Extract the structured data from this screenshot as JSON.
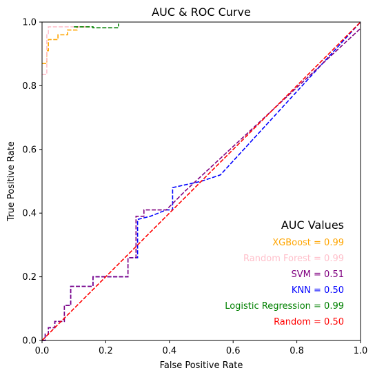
{
  "chart_data": {
    "type": "line",
    "title": "AUC & ROC Curve",
    "xlabel": "False Positive Rate",
    "ylabel": "True Positive Rate",
    "xlim": [
      0,
      1
    ],
    "ylim": [
      0,
      1
    ],
    "grid": false,
    "line_style": "dashed",
    "xticks": [
      "0.0",
      "0.2",
      "0.4",
      "0.6",
      "0.8",
      "1.0"
    ],
    "yticks": [
      "0.0",
      "0.2",
      "0.4",
      "0.6",
      "0.8",
      "1.0"
    ],
    "series": [
      {
        "key": "knn",
        "color": "#0000ff",
        "x": [
          0,
          0.01,
          0.01,
          0.02,
          0.02,
          0.04,
          0.04,
          0.07,
          0.07,
          0.09,
          0.09,
          0.16,
          0.16,
          0.27,
          0.27,
          0.3,
          0.3,
          0.34,
          0.39,
          0.41,
          0.41,
          0.5,
          0.56,
          1.0
        ],
        "y": [
          0,
          0,
          0.02,
          0.02,
          0.04,
          0.04,
          0.06,
          0.06,
          0.11,
          0.11,
          0.17,
          0.17,
          0.2,
          0.2,
          0.26,
          0.26,
          0.38,
          0.39,
          0.41,
          0.41,
          0.48,
          0.5,
          0.52,
          1.0
        ]
      },
      {
        "key": "svm",
        "color": "#800080",
        "x": [
          0,
          0.01,
          0.01,
          0.02,
          0.02,
          0.04,
          0.04,
          0.07,
          0.07,
          0.09,
          0.09,
          0.16,
          0.16,
          0.27,
          0.27,
          0.295,
          0.295,
          0.32,
          0.32,
          0.39,
          0.45,
          1.0
        ],
        "y": [
          0,
          0,
          0.02,
          0.02,
          0.04,
          0.04,
          0.06,
          0.06,
          0.11,
          0.11,
          0.17,
          0.17,
          0.2,
          0.2,
          0.26,
          0.26,
          0.39,
          0.39,
          0.41,
          0.41,
          0.47,
          0.98
        ]
      },
      {
        "key": "xgboost",
        "color": "#ffa500",
        "x": [
          0,
          0.015,
          0.015,
          0.02,
          0.02,
          0.05,
          0.05,
          0.08,
          0.08,
          0.11,
          0.11,
          0.15
        ],
        "y": [
          0.87,
          0.87,
          0.91,
          0.91,
          0.945,
          0.945,
          0.96,
          0.96,
          0.975,
          0.975,
          0.985,
          0.985
        ]
      },
      {
        "key": "random_forest",
        "color": "#ffc0cb",
        "x": [
          0,
          0.015,
          0.015,
          0.02,
          0.02,
          0.15
        ],
        "y": [
          0.835,
          0.835,
          0.96,
          0.96,
          0.985,
          0.985
        ]
      },
      {
        "key": "logistic_regression",
        "color": "#008000",
        "x": [
          0.1,
          0.16,
          0.16,
          0.24,
          0.24
        ],
        "y": [
          0.985,
          0.985,
          0.982,
          0.982,
          0.995
        ]
      },
      {
        "key": "random",
        "color": "#ff0000",
        "x": [
          0,
          1
        ],
        "y": [
          0,
          1
        ]
      }
    ],
    "annotation_box": {
      "title": "AUC Values",
      "placement": "bottom-right",
      "entries": [
        {
          "key": "xgboost",
          "text": "XGBoost = 0.99",
          "color": "#ffa500"
        },
        {
          "key": "random_forest",
          "text": "Random Forest = 0.99",
          "color": "#ffc0cb"
        },
        {
          "key": "svm",
          "text": "SVM = 0.51",
          "color": "#800080"
        },
        {
          "key": "knn",
          "text": "KNN = 0.50",
          "color": "#0000ff"
        },
        {
          "key": "logistic_regression",
          "text": "Logistic Regression = 0.99",
          "color": "#008000"
        },
        {
          "key": "random",
          "text": "Random = 0.50",
          "color": "#ff0000"
        }
      ]
    }
  }
}
